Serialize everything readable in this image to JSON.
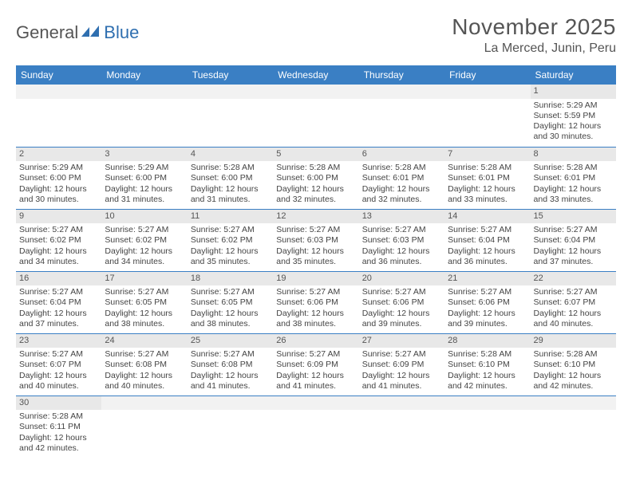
{
  "logo": {
    "text_general": "General",
    "text_blue": "Blue"
  },
  "header": {
    "month_title": "November 2025",
    "location": "La Merced, Junin, Peru"
  },
  "colors": {
    "header_bg": "#3a7fc4",
    "header_text": "#ffffff",
    "daynum_bg": "#e8e8e8",
    "cell_border": "#3a7fc4",
    "text": "#444444",
    "title_text": "#555555",
    "logo_accent": "#2f6fb0"
  },
  "daynames": [
    "Sunday",
    "Monday",
    "Tuesday",
    "Wednesday",
    "Thursday",
    "Friday",
    "Saturday"
  ],
  "weeks": [
    [
      {
        "blank": true
      },
      {
        "blank": true
      },
      {
        "blank": true
      },
      {
        "blank": true
      },
      {
        "blank": true
      },
      {
        "blank": true
      },
      {
        "n": "1",
        "sr": "Sunrise: 5:29 AM",
        "ss": "Sunset: 5:59 PM",
        "dl": "Daylight: 12 hours and 30 minutes."
      }
    ],
    [
      {
        "n": "2",
        "sr": "Sunrise: 5:29 AM",
        "ss": "Sunset: 6:00 PM",
        "dl": "Daylight: 12 hours and 30 minutes."
      },
      {
        "n": "3",
        "sr": "Sunrise: 5:29 AM",
        "ss": "Sunset: 6:00 PM",
        "dl": "Daylight: 12 hours and 31 minutes."
      },
      {
        "n": "4",
        "sr": "Sunrise: 5:28 AM",
        "ss": "Sunset: 6:00 PM",
        "dl": "Daylight: 12 hours and 31 minutes."
      },
      {
        "n": "5",
        "sr": "Sunrise: 5:28 AM",
        "ss": "Sunset: 6:00 PM",
        "dl": "Daylight: 12 hours and 32 minutes."
      },
      {
        "n": "6",
        "sr": "Sunrise: 5:28 AM",
        "ss": "Sunset: 6:01 PM",
        "dl": "Daylight: 12 hours and 32 minutes."
      },
      {
        "n": "7",
        "sr": "Sunrise: 5:28 AM",
        "ss": "Sunset: 6:01 PM",
        "dl": "Daylight: 12 hours and 33 minutes."
      },
      {
        "n": "8",
        "sr": "Sunrise: 5:28 AM",
        "ss": "Sunset: 6:01 PM",
        "dl": "Daylight: 12 hours and 33 minutes."
      }
    ],
    [
      {
        "n": "9",
        "sr": "Sunrise: 5:27 AM",
        "ss": "Sunset: 6:02 PM",
        "dl": "Daylight: 12 hours and 34 minutes."
      },
      {
        "n": "10",
        "sr": "Sunrise: 5:27 AM",
        "ss": "Sunset: 6:02 PM",
        "dl": "Daylight: 12 hours and 34 minutes."
      },
      {
        "n": "11",
        "sr": "Sunrise: 5:27 AM",
        "ss": "Sunset: 6:02 PM",
        "dl": "Daylight: 12 hours and 35 minutes."
      },
      {
        "n": "12",
        "sr": "Sunrise: 5:27 AM",
        "ss": "Sunset: 6:03 PM",
        "dl": "Daylight: 12 hours and 35 minutes."
      },
      {
        "n": "13",
        "sr": "Sunrise: 5:27 AM",
        "ss": "Sunset: 6:03 PM",
        "dl": "Daylight: 12 hours and 36 minutes."
      },
      {
        "n": "14",
        "sr": "Sunrise: 5:27 AM",
        "ss": "Sunset: 6:04 PM",
        "dl": "Daylight: 12 hours and 36 minutes."
      },
      {
        "n": "15",
        "sr": "Sunrise: 5:27 AM",
        "ss": "Sunset: 6:04 PM",
        "dl": "Daylight: 12 hours and 37 minutes."
      }
    ],
    [
      {
        "n": "16",
        "sr": "Sunrise: 5:27 AM",
        "ss": "Sunset: 6:04 PM",
        "dl": "Daylight: 12 hours and 37 minutes."
      },
      {
        "n": "17",
        "sr": "Sunrise: 5:27 AM",
        "ss": "Sunset: 6:05 PM",
        "dl": "Daylight: 12 hours and 38 minutes."
      },
      {
        "n": "18",
        "sr": "Sunrise: 5:27 AM",
        "ss": "Sunset: 6:05 PM",
        "dl": "Daylight: 12 hours and 38 minutes."
      },
      {
        "n": "19",
        "sr": "Sunrise: 5:27 AM",
        "ss": "Sunset: 6:06 PM",
        "dl": "Daylight: 12 hours and 38 minutes."
      },
      {
        "n": "20",
        "sr": "Sunrise: 5:27 AM",
        "ss": "Sunset: 6:06 PM",
        "dl": "Daylight: 12 hours and 39 minutes."
      },
      {
        "n": "21",
        "sr": "Sunrise: 5:27 AM",
        "ss": "Sunset: 6:06 PM",
        "dl": "Daylight: 12 hours and 39 minutes."
      },
      {
        "n": "22",
        "sr": "Sunrise: 5:27 AM",
        "ss": "Sunset: 6:07 PM",
        "dl": "Daylight: 12 hours and 40 minutes."
      }
    ],
    [
      {
        "n": "23",
        "sr": "Sunrise: 5:27 AM",
        "ss": "Sunset: 6:07 PM",
        "dl": "Daylight: 12 hours and 40 minutes."
      },
      {
        "n": "24",
        "sr": "Sunrise: 5:27 AM",
        "ss": "Sunset: 6:08 PM",
        "dl": "Daylight: 12 hours and 40 minutes."
      },
      {
        "n": "25",
        "sr": "Sunrise: 5:27 AM",
        "ss": "Sunset: 6:08 PM",
        "dl": "Daylight: 12 hours and 41 minutes."
      },
      {
        "n": "26",
        "sr": "Sunrise: 5:27 AM",
        "ss": "Sunset: 6:09 PM",
        "dl": "Daylight: 12 hours and 41 minutes."
      },
      {
        "n": "27",
        "sr": "Sunrise: 5:27 AM",
        "ss": "Sunset: 6:09 PM",
        "dl": "Daylight: 12 hours and 41 minutes."
      },
      {
        "n": "28",
        "sr": "Sunrise: 5:28 AM",
        "ss": "Sunset: 6:10 PM",
        "dl": "Daylight: 12 hours and 42 minutes."
      },
      {
        "n": "29",
        "sr": "Sunrise: 5:28 AM",
        "ss": "Sunset: 6:10 PM",
        "dl": "Daylight: 12 hours and 42 minutes."
      }
    ],
    [
      {
        "n": "30",
        "sr": "Sunrise: 5:28 AM",
        "ss": "Sunset: 6:11 PM",
        "dl": "Daylight: 12 hours and 42 minutes."
      },
      {
        "blank": true
      },
      {
        "blank": true
      },
      {
        "blank": true
      },
      {
        "blank": true
      },
      {
        "blank": true
      },
      {
        "blank": true
      }
    ]
  ]
}
